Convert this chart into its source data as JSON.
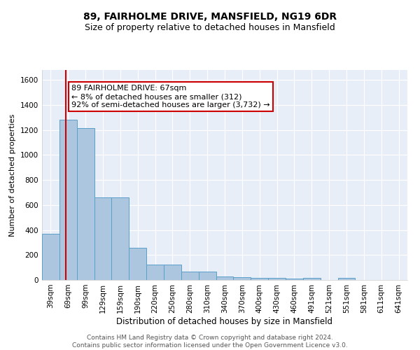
{
  "title": "89, FAIRHOLME DRIVE, MANSFIELD, NG19 6DR",
  "subtitle": "Size of property relative to detached houses in Mansfield",
  "xlabel": "Distribution of detached houses by size in Mansfield",
  "ylabel": "Number of detached properties",
  "categories": [
    "39sqm",
    "69sqm",
    "99sqm",
    "129sqm",
    "159sqm",
    "190sqm",
    "220sqm",
    "250sqm",
    "280sqm",
    "310sqm",
    "340sqm",
    "370sqm",
    "400sqm",
    "430sqm",
    "460sqm",
    "491sqm",
    "521sqm",
    "551sqm",
    "581sqm",
    "611sqm",
    "641sqm"
  ],
  "values": [
    370,
    1280,
    1215,
    660,
    660,
    260,
    125,
    125,
    70,
    70,
    30,
    20,
    15,
    15,
    10,
    15,
    0,
    15,
    0,
    0,
    0
  ],
  "bar_color": "#adc6e0",
  "bar_edge_color": "#5a9fc8",
  "vline_x_idx": 1,
  "vline_color": "#cc0000",
  "annotation_text": "89 FAIRHOLME DRIVE: 67sqm\n← 8% of detached houses are smaller (312)\n92% of semi-detached houses are larger (3,732) →",
  "annotation_box_color": "#ffffff",
  "annotation_box_edge_color": "#cc0000",
  "ylim": [
    0,
    1680
  ],
  "yticks": [
    0,
    200,
    400,
    600,
    800,
    1000,
    1200,
    1400,
    1600
  ],
  "background_color": "#e8eef8",
  "grid_color": "#ffffff",
  "footer_text": "Contains HM Land Registry data © Crown copyright and database right 2024.\nContains public sector information licensed under the Open Government Licence v3.0.",
  "title_fontsize": 10,
  "subtitle_fontsize": 9,
  "xlabel_fontsize": 8.5,
  "ylabel_fontsize": 8,
  "annotation_fontsize": 8,
  "footer_fontsize": 6.5,
  "tick_fontsize": 7.5
}
